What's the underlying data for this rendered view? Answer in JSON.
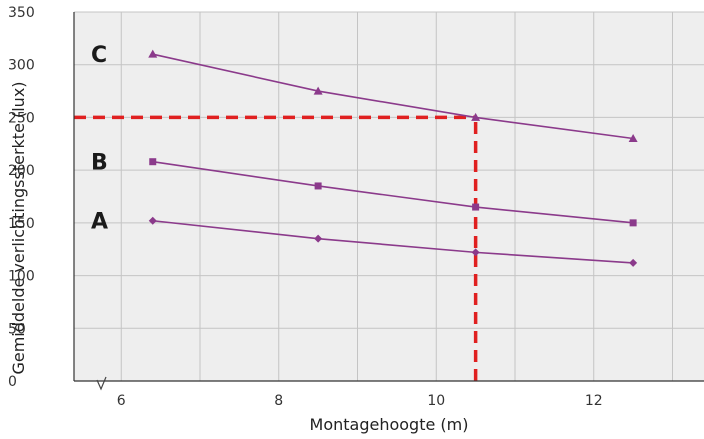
{
  "chart_data": {
    "type": "line",
    "title": "",
    "xlabel": "Montagehoogte (m)",
    "ylabel": "Gemiddelde verlichtingssterkte (lux)",
    "xlim": [
      5.4,
      13.4
    ],
    "ylim": [
      0,
      350
    ],
    "x_ticks": [
      6,
      8,
      10,
      12
    ],
    "y_ticks": [
      0,
      50,
      100,
      150,
      200,
      250,
      300,
      350
    ],
    "y_tick_labels": [
      "0",
      "50",
      "100",
      "150",
      "200",
      "250",
      "300",
      "350"
    ],
    "grid": true,
    "line_color": "#8b3a8b",
    "guide_color": "#e02020",
    "series": [
      {
        "name": "A",
        "marker": "diamond",
        "x": [
          6.4,
          8.5,
          10.5,
          12.5
        ],
        "y": [
          152,
          135,
          122,
          112
        ]
      },
      {
        "name": "B",
        "marker": "square",
        "x": [
          6.4,
          8.5,
          10.5,
          12.5
        ],
        "y": [
          208,
          185,
          165,
          150
        ]
      },
      {
        "name": "C",
        "marker": "triangle",
        "x": [
          6.4,
          8.5,
          10.5,
          12.5
        ],
        "y": [
          310,
          275,
          250,
          230
        ]
      }
    ],
    "guides": [
      {
        "orientation": "horizontal",
        "value": 250,
        "from": 5.4,
        "to": 10.5
      },
      {
        "orientation": "vertical",
        "value": 10.5,
        "from": 0,
        "to": 250
      }
    ]
  }
}
